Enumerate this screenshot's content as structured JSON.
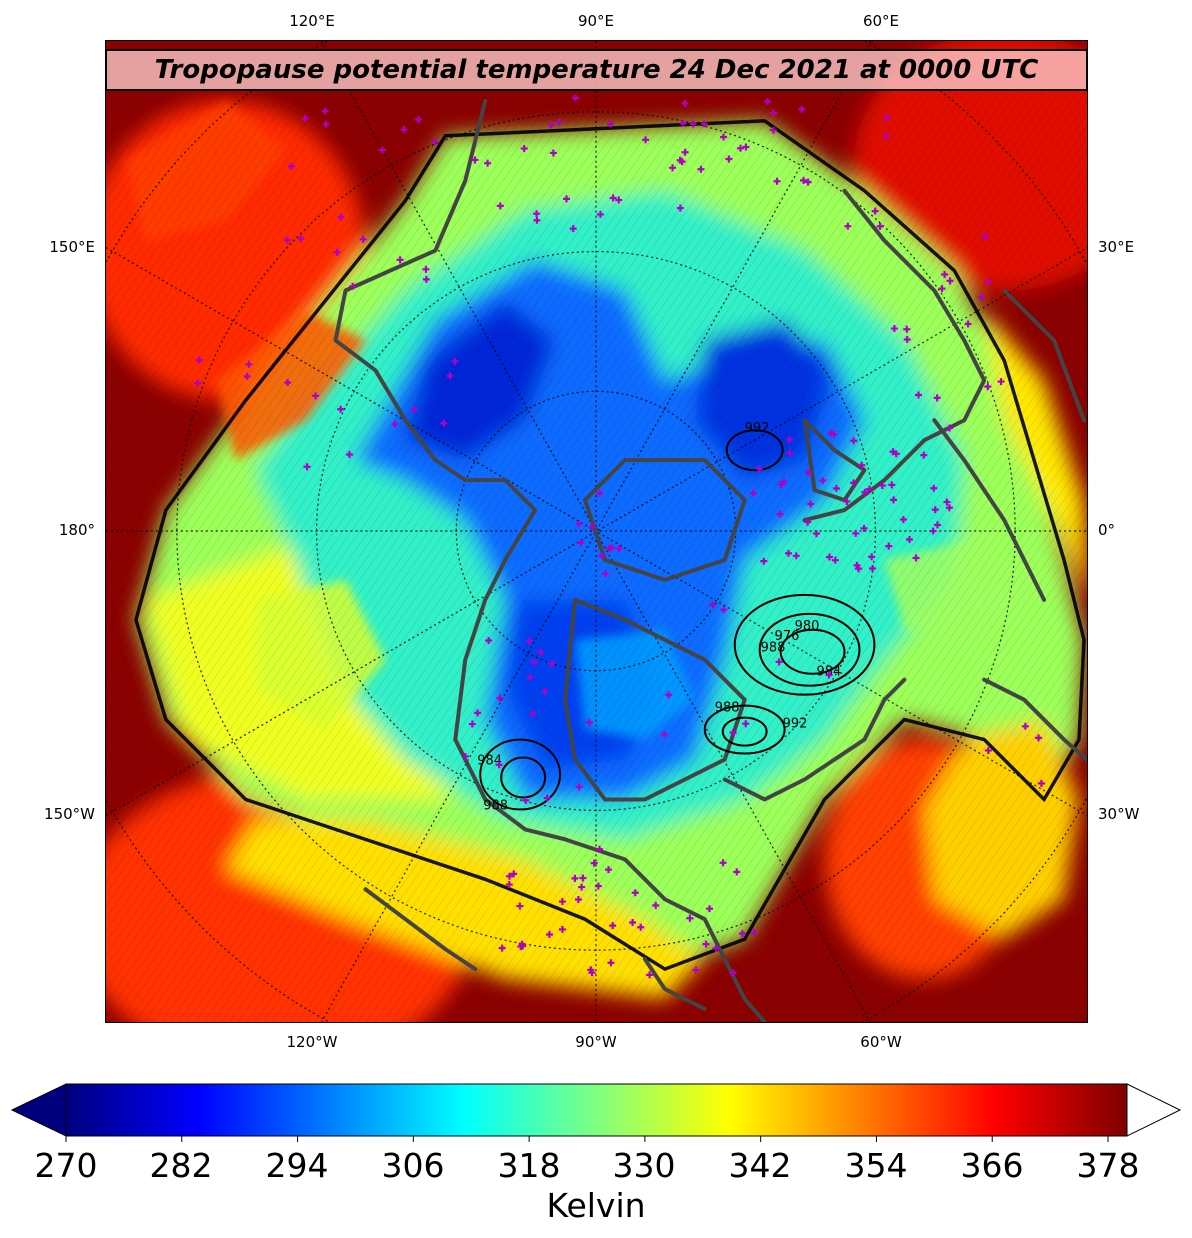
{
  "title": "Tropopause potential temperature 24 Dec 2021 at 0000 UTC",
  "labels": {
    "top": [
      "120°E",
      "90°E",
      "60°E"
    ],
    "bottom": [
      "120°W",
      "90°W",
      "60°W"
    ],
    "left": [
      "150°E",
      "180°",
      "150°W"
    ],
    "right": [
      "30°E",
      "0°",
      "30°W"
    ]
  },
  "pressure_contours": [
    "992",
    "988",
    "984",
    "980",
    "976",
    "988",
    "992",
    "984",
    "988"
  ],
  "colorbar": {
    "ticks": [
      "270",
      "282",
      "294",
      "306",
      "318",
      "330",
      "342",
      "354",
      "366",
      "378"
    ],
    "label": "Kelvin",
    "extend": "both",
    "colormap": "jet",
    "colors": [
      "#00007f",
      "#0000ff",
      "#007fff",
      "#00ffff",
      "#7fff7f",
      "#ffff00",
      "#ff7f00",
      "#ff0000",
      "#7f0000"
    ]
  },
  "colors": {
    "coastline": "#444444",
    "station_marker": "#b000c8",
    "title_box": "#ffcdcd"
  }
}
